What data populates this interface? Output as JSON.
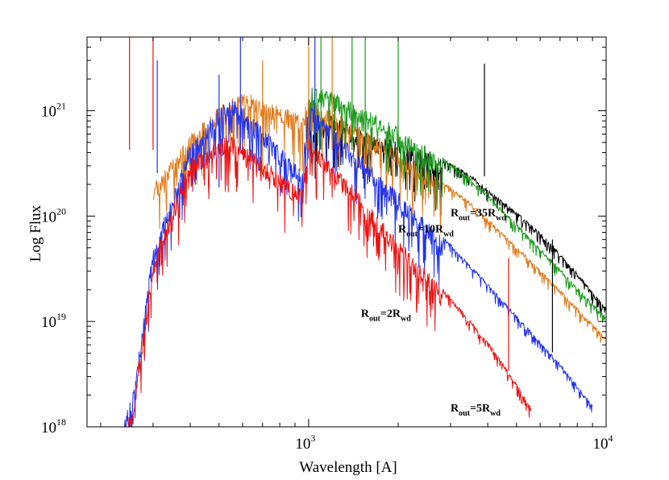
{
  "chart_data": {
    "type": "line",
    "title": "",
    "xlabel": "Wavelength [A]",
    "ylabel": "Log Flux",
    "xscale": "log",
    "yscale": "log",
    "xlim": [
      180,
      10000
    ],
    "ylim": [
      1e+18,
      5e+21
    ],
    "xticks": [
      {
        "value": 1000,
        "base": "10",
        "exp": "3"
      },
      {
        "value": 10000,
        "base": "10",
        "exp": "4"
      }
    ],
    "yticks": [
      {
        "value": 1e+18,
        "base": "10",
        "exp": "18"
      },
      {
        "value": 1e+19,
        "base": "10",
        "exp": "19"
      },
      {
        "value": 1e+20,
        "base": "10",
        "exp": "20"
      },
      {
        "value": 1e+21,
        "base": "10",
        "exp": "21"
      }
    ],
    "series": [
      {
        "name": "Rout=35Rwd",
        "color": "#000000",
        "x": [
          1000,
          1200,
          1500,
          2000,
          2500,
          3000,
          3500,
          4000,
          5000,
          6000,
          7000,
          8000,
          9000,
          10000
        ],
        "y": [
          7e+20,
          9e+20,
          6.5e+20,
          5e+20,
          4e+20,
          3.2e+20,
          2.5e+20,
          1.8e+20,
          1.1e+20,
          7e+19,
          4.5e+19,
          2.9e+19,
          1.9e+19,
          1.35e+19
        ]
      },
      {
        "name": "Rout=10Rwd",
        "color": "#e07b1a",
        "x": [
          300,
          400,
          500,
          600,
          700,
          800,
          900,
          950,
          1000,
          1200,
          1500,
          2000,
          2500,
          3000,
          3500,
          4000,
          5000,
          6000,
          7000,
          8000,
          9000,
          10000
        ],
        "y": [
          2e+20,
          6e+20,
          1.1e+21,
          1.5e+21,
          1.3e+21,
          1.1e+21,
          9.5e+20,
          9e+20,
          1.3e+21,
          1e+21,
          7e+20,
          4.3e+20,
          2.8e+20,
          1.9e+20,
          1.35e+20,
          9.5e+19,
          5.2e+19,
          3.1e+19,
          2e+19,
          1.35e+19,
          9.5e+18,
          7e+18
        ]
      },
      {
        "name": "Rout=5Rwd",
        "color": "#1a9a1a",
        "x": [
          1000,
          1200,
          1500,
          2000,
          2500,
          3000,
          3500,
          4000,
          5000,
          6000,
          7000,
          8000,
          9000,
          10000
        ],
        "y": [
          1.8e+21,
          1.5e+21,
          1.1e+21,
          7e+20,
          4.6e+20,
          3.2e+20,
          2.3e+20,
          1.6e+20,
          8.5e+19,
          5e+19,
          3.2e+19,
          2.1e+19,
          1.5e+19,
          1.1e+19
        ]
      },
      {
        "name": "Rout=2Rwd",
        "color": "#2233ee",
        "x": [
          220,
          260,
          300,
          400,
          500,
          550,
          600,
          700,
          800,
          900,
          950,
          1000,
          1200,
          1500,
          2000,
          2500,
          3000,
          4000,
          5000,
          6000,
          7000,
          8000,
          9000
        ],
        "y": [
          5e+17,
          2.5e+18,
          5e+19,
          5e+20,
          1.1e+21,
          1.3e+21,
          1.1e+21,
          7e+20,
          4.5e+20,
          3.2e+20,
          3e+20,
          1.2e+21,
          7e+20,
          3.8e+20,
          1.7e+20,
          9e+19,
          5.5e+19,
          2.3e+19,
          1.15e+19,
          6.5e+18,
          4e+18,
          2.5e+18,
          1.6e+18
        ]
      },
      {
        "name": "",
        "color": "#ee1111",
        "x": [
          220,
          260,
          300,
          400,
          500,
          550,
          600,
          700,
          800,
          900,
          950,
          1000,
          1200,
          1500,
          2000,
          2500,
          3000,
          4000,
          5000,
          5600
        ],
        "y": [
          4e+17,
          2e+18,
          4e+19,
          3.5e+20,
          5.5e+20,
          6e+20,
          5e+20,
          3.5e+20,
          2.6e+20,
          2e+20,
          1.9e+20,
          6e+20,
          3.2e+20,
          1.6e+20,
          6e+19,
          3e+19,
          1.7e+19,
          6.5e+18,
          2.6e+18,
          1.5e+18
        ]
      }
    ],
    "spikes": [
      {
        "x": 250,
        "y": 5e+21,
        "color": "#ee1111"
      },
      {
        "x": 300,
        "y": 5e+21,
        "color": "#ee1111"
      },
      {
        "x": 310,
        "y": 3e+21,
        "color": "#2233ee"
      },
      {
        "x": 500,
        "y": 2.2e+21,
        "color": "#2233ee"
      },
      {
        "x": 590,
        "y": 5e+21,
        "color": "#2233ee"
      },
      {
        "x": 700,
        "y": 3e+21,
        "color": "#e07b1a"
      },
      {
        "x": 1000,
        "y": 5e+21,
        "color": "#e07b1a"
      },
      {
        "x": 1050,
        "y": 5e+21,
        "color": "#2233ee"
      },
      {
        "x": 1100,
        "y": 5e+21,
        "color": "#1a9a1a"
      },
      {
        "x": 1200,
        "y": 5e+21,
        "color": "#e07b1a"
      },
      {
        "x": 1400,
        "y": 5e+21,
        "color": "#1a9a1a"
      },
      {
        "x": 1550,
        "y": 5e+21,
        "color": "#1a9a1a"
      },
      {
        "x": 2000,
        "y": 5e+21,
        "color": "#1a9a1a"
      },
      {
        "x": 3900,
        "y": 2.8e+21,
        "color": "#000000"
      },
      {
        "x": 4700,
        "y": 4e+19,
        "color": "#ee1111"
      },
      {
        "x": 6600,
        "y": 6e+19,
        "color": "#000000"
      }
    ],
    "annotations": [
      {
        "main": "R",
        "sub1": "out",
        "mid": "=35R",
        "sub2": "wd",
        "x": 3000,
        "y": 1e+20
      },
      {
        "main": "R",
        "sub1": "out",
        "mid": "=10R",
        "sub2": "wd",
        "x": 2000,
        "y": 7e+19
      },
      {
        "main": "R",
        "sub1": "out",
        "mid": "=2R",
        "sub2": "wd",
        "x": 1500,
        "y": 1.1e+19
      },
      {
        "main": "R",
        "sub1": "out",
        "mid": "=5R",
        "sub2": "wd",
        "x": 3000,
        "y": 1.4e+18
      }
    ]
  }
}
